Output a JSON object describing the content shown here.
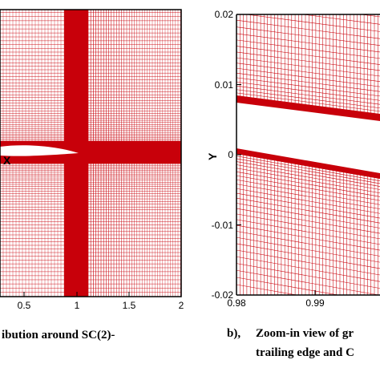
{
  "figure": {
    "left_panel": {
      "xlabel": "X",
      "xticks": [
        "0.5",
        "1",
        "1.5",
        "2"
      ],
      "mesh_color": "#c8000a"
    },
    "right_panel": {
      "ylabel": "Y",
      "yticks": [
        "0.02",
        "0.01",
        "0",
        "-0.01",
        "-0.02"
      ],
      "xticks": [
        "0.98",
        "0.99"
      ],
      "mesh_color": "#c8000a"
    },
    "captions": {
      "left": "ibution around SC(2)-",
      "right_marker": "b),",
      "right_line1": "Zoom-in view of gr",
      "right_line2": "trailing edge and C"
    }
  }
}
